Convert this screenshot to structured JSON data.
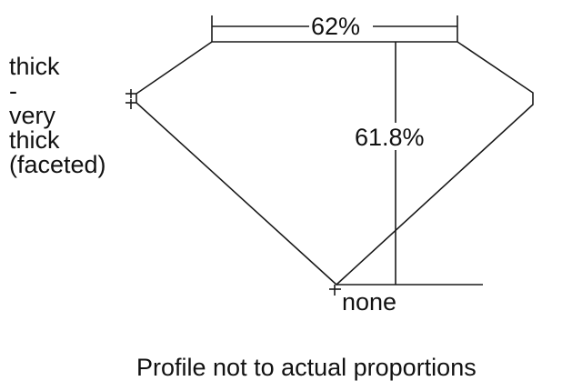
{
  "diagram": {
    "table_label": "62%",
    "depth_label": "61.8%",
    "culet_label": "none",
    "girdle_label_lines": [
      "thick",
      "-",
      "very",
      "thick",
      "(faceted)"
    ],
    "caption": "Profile not to actual proportions",
    "line_color": "#1a1a1a"
  }
}
